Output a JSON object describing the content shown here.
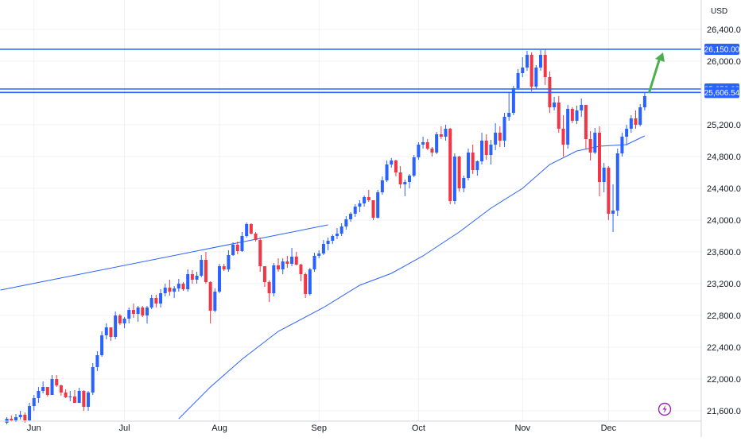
{
  "currency_label": "USD",
  "colors": {
    "up": "#2962ff",
    "down": "#f23645",
    "level_line": "#2962ff",
    "moving_average": "#2962ff",
    "trendline": "#2962ff",
    "arrow": "#4caf50",
    "grid": "#eef0f3",
    "axis_text": "#131722",
    "flash_icon": "#9c27b0"
  },
  "icons": {
    "flash": "lightning-bolt-icon",
    "target": "up-arrow-icon"
  },
  "chart_data": {
    "type": "candlestick",
    "title": "",
    "y_axis": {
      "ticks": [
        "26,400.00",
        "26,000.00",
        "25,200.00",
        "24,800.00",
        "24,400.00",
        "24,000.00",
        "23,600.00",
        "23,200.00",
        "22,800.00",
        "22,400.00",
        "22,000.00",
        "21,600.00"
      ],
      "ylim": [
        21470,
        26770
      ]
    },
    "x_axis": {
      "labels": [
        "Jun",
        "Jul",
        "Aug",
        "Sep",
        "Oct",
        "Nov",
        "Dec"
      ],
      "label_start_index": [
        6,
        26,
        47,
        69,
        91,
        114,
        133
      ]
    },
    "price_tags": [
      "26,150.00",
      "25,650.00",
      "25,606.54"
    ],
    "levels": [
      26150,
      25650,
      25606.54
    ],
    "trendline": {
      "from": [
        0,
        23120
      ],
      "to": [
        71,
        23940
      ]
    },
    "moving_average": {
      "points": [
        [
          38,
          21500
        ],
        [
          45,
          21900
        ],
        [
          52,
          22250
        ],
        [
          60,
          22600
        ],
        [
          70,
          22900
        ],
        [
          78,
          23180
        ],
        [
          85,
          23330
        ],
        [
          92,
          23550
        ],
        [
          100,
          23850
        ],
        [
          107,
          24150
        ],
        [
          114,
          24400
        ],
        [
          120,
          24700
        ],
        [
          126,
          24870
        ],
        [
          131,
          24930
        ],
        [
          137,
          24950
        ],
        [
          141,
          25060
        ]
      ]
    },
    "target_arrow": {
      "from": [
        142,
        25610
      ],
      "to": [
        144,
        26110
      ]
    },
    "candles": [
      [
        21450,
        21520,
        21430,
        21500
      ],
      [
        21500,
        21540,
        21470,
        21480
      ],
      [
        21480,
        21560,
        21460,
        21520
      ],
      [
        21520,
        21600,
        21490,
        21550
      ],
      [
        21550,
        21580,
        21450,
        21480
      ],
      [
        21480,
        21700,
        21470,
        21660
      ],
      [
        21660,
        21800,
        21600,
        21760
      ],
      [
        21760,
        21900,
        21700,
        21850
      ],
      [
        21850,
        21970,
        21820,
        21900
      ],
      [
        21900,
        21880,
        21780,
        21800
      ],
      [
        21800,
        22050,
        21800,
        22000
      ],
      [
        22000,
        22050,
        21900,
        21920
      ],
      [
        21920,
        21930,
        21790,
        21830
      ],
      [
        21830,
        21870,
        21760,
        21770
      ],
      [
        21770,
        21850,
        21720,
        21780
      ],
      [
        21780,
        21860,
        21700,
        21700
      ],
      [
        21700,
        21890,
        21700,
        21850
      ],
      [
        21850,
        21860,
        21600,
        21650
      ],
      [
        21650,
        21850,
        21600,
        21830
      ],
      [
        21830,
        22200,
        21800,
        22150
      ],
      [
        22150,
        22350,
        22100,
        22300
      ],
      [
        22300,
        22600,
        22280,
        22550
      ],
      [
        22550,
        22700,
        22500,
        22650
      ],
      [
        22650,
        22650,
        22480,
        22530
      ],
      [
        22530,
        22850,
        22500,
        22800
      ],
      [
        22800,
        22820,
        22680,
        22700
      ],
      [
        22700,
        22780,
        22640,
        22760
      ],
      [
        22760,
        22900,
        22700,
        22870
      ],
      [
        22870,
        22950,
        22770,
        22820
      ],
      [
        22820,
        22920,
        22720,
        22900
      ],
      [
        22900,
        22920,
        22780,
        22800
      ],
      [
        22800,
        22920,
        22700,
        22900
      ],
      [
        22900,
        23060,
        22880,
        23020
      ],
      [
        23020,
        23060,
        22900,
        22950
      ],
      [
        22950,
        23130,
        22900,
        23080
      ],
      [
        23080,
        23200,
        23040,
        23150
      ],
      [
        23150,
        23250,
        23050,
        23100
      ],
      [
        23100,
        23170,
        23020,
        23140
      ],
      [
        23140,
        23260,
        23100,
        23200
      ],
      [
        23200,
        23220,
        23110,
        23130
      ],
      [
        23130,
        23380,
        23100,
        23320
      ],
      [
        23320,
        23370,
        23200,
        23250
      ],
      [
        23250,
        23350,
        23200,
        23300
      ],
      [
        23300,
        23560,
        23280,
        23500
      ],
      [
        23500,
        23600,
        23200,
        23220
      ],
      [
        23220,
        23230,
        22700,
        22860
      ],
      [
        22860,
        23140,
        22840,
        23100
      ],
      [
        23100,
        23450,
        23080,
        23420
      ],
      [
        23420,
        23450,
        23360,
        23380
      ],
      [
        23380,
        23620,
        23350,
        23560
      ],
      [
        23560,
        23720,
        23550,
        23690
      ],
      [
        23690,
        23730,
        23570,
        23610
      ],
      [
        23610,
        23850,
        23600,
        23800
      ],
      [
        23800,
        23970,
        23780,
        23950
      ],
      [
        23950,
        23960,
        23820,
        23830
      ],
      [
        23830,
        23850,
        23730,
        23750
      ],
      [
        23750,
        23780,
        23350,
        23420
      ],
      [
        23420,
        23400,
        23160,
        23220
      ],
      [
        23220,
        23240,
        22970,
        23080
      ],
      [
        23080,
        23460,
        23040,
        23430
      ],
      [
        23430,
        23520,
        23350,
        23380
      ],
      [
        23380,
        23520,
        23320,
        23480
      ],
      [
        23480,
        23550,
        23400,
        23450
      ],
      [
        23450,
        23650,
        23420,
        23540
      ],
      [
        23540,
        23600,
        23430,
        23440
      ],
      [
        23440,
        23450,
        23230,
        23320
      ],
      [
        23320,
        23340,
        23020,
        23070
      ],
      [
        23070,
        23400,
        23050,
        23380
      ],
      [
        23380,
        23590,
        23350,
        23550
      ],
      [
        23550,
        23620,
        23520,
        23580
      ],
      [
        23580,
        23750,
        23560,
        23700
      ],
      [
        23700,
        23780,
        23620,
        23740
      ],
      [
        23740,
        23820,
        23700,
        23800
      ],
      [
        23800,
        23900,
        23760,
        23830
      ],
      [
        23830,
        23960,
        23800,
        23920
      ],
      [
        23920,
        24050,
        23880,
        24010
      ],
      [
        24010,
        24100,
        23980,
        24080
      ],
      [
        24080,
        24200,
        24040,
        24170
      ],
      [
        24170,
        24250,
        24100,
        24210
      ],
      [
        24210,
        24310,
        24170,
        24290
      ],
      [
        24290,
        24380,
        24230,
        24250
      ],
      [
        24250,
        24240,
        24000,
        24030
      ],
      [
        24030,
        24380,
        24020,
        24350
      ],
      [
        24350,
        24550,
        24320,
        24500
      ],
      [
        24500,
        24750,
        24480,
        24700
      ],
      [
        24700,
        24780,
        24660,
        24750
      ],
      [
        24750,
        24760,
        24550,
        24600
      ],
      [
        24600,
        24680,
        24400,
        24450
      ],
      [
        24450,
        24510,
        24300,
        24480
      ],
      [
        24480,
        24580,
        24400,
        24560
      ],
      [
        24560,
        24820,
        24540,
        24790
      ],
      [
        24790,
        24980,
        24760,
        24950
      ],
      [
        24950,
        25050,
        24900,
        24980
      ],
      [
        24980,
        25020,
        24880,
        24900
      ],
      [
        24900,
        24920,
        24800,
        24850
      ],
      [
        24850,
        25110,
        24830,
        25080
      ],
      [
        25080,
        25180,
        25020,
        25050
      ],
      [
        25050,
        25200,
        25000,
        25150
      ],
      [
        25150,
        25160,
        24200,
        24240
      ],
      [
        24240,
        24840,
        24200,
        24800
      ],
      [
        24800,
        24810,
        24360,
        24400
      ],
      [
        24400,
        24560,
        24350,
        24530
      ],
      [
        24530,
        24900,
        24500,
        24850
      ],
      [
        24850,
        24950,
        24580,
        24630
      ],
      [
        24630,
        24750,
        24560,
        24740
      ],
      [
        24740,
        25100,
        24700,
        25000
      ],
      [
        25000,
        25080,
        24760,
        24820
      ],
      [
        24820,
        25010,
        24700,
        24950
      ],
      [
        24950,
        25220,
        24880,
        25100
      ],
      [
        25100,
        25180,
        24920,
        25000
      ],
      [
        25000,
        25350,
        24920,
        25300
      ],
      [
        25300,
        25600,
        25250,
        25350
      ],
      [
        25350,
        25690,
        25320,
        25660
      ],
      [
        25660,
        25900,
        25640,
        25850
      ],
      [
        25850,
        26050,
        25800,
        25920
      ],
      [
        25920,
        26130,
        25880,
        26080
      ],
      [
        26080,
        26110,
        25620,
        25680
      ],
      [
        25680,
        25950,
        25650,
        25920
      ],
      [
        25920,
        26140,
        25880,
        26080
      ],
      [
        26080,
        26150,
        25700,
        25800
      ],
      [
        25800,
        25870,
        25350,
        25420
      ],
      [
        25420,
        25550,
        25380,
        25480
      ],
      [
        25480,
        25560,
        25100,
        25150
      ],
      [
        25150,
        25320,
        24800,
        24950
      ],
      [
        24950,
        25450,
        24900,
        25400
      ],
      [
        25400,
        25420,
        25220,
        25250
      ],
      [
        25250,
        25440,
        25210,
        25380
      ],
      [
        25380,
        25530,
        25300,
        25450
      ],
      [
        25450,
        25450,
        24900,
        25020
      ],
      [
        25020,
        25120,
        24750,
        24850
      ],
      [
        24850,
        25160,
        24830,
        25100
      ],
      [
        25100,
        25180,
        24300,
        24480
      ],
      [
        24480,
        24720,
        24350,
        24660
      ],
      [
        24660,
        24680,
        24000,
        24080
      ],
      [
        24080,
        24450,
        23850,
        24120
      ],
      [
        24120,
        24900,
        24050,
        24840
      ],
      [
        24840,
        25100,
        24800,
        25050
      ],
      [
        25050,
        25200,
        24940,
        25150
      ],
      [
        25150,
        25320,
        25100,
        25280
      ],
      [
        25280,
        25380,
        25150,
        25200
      ],
      [
        25200,
        25460,
        25180,
        25420
      ],
      [
        25420,
        25600,
        25380,
        25560
      ]
    ]
  }
}
